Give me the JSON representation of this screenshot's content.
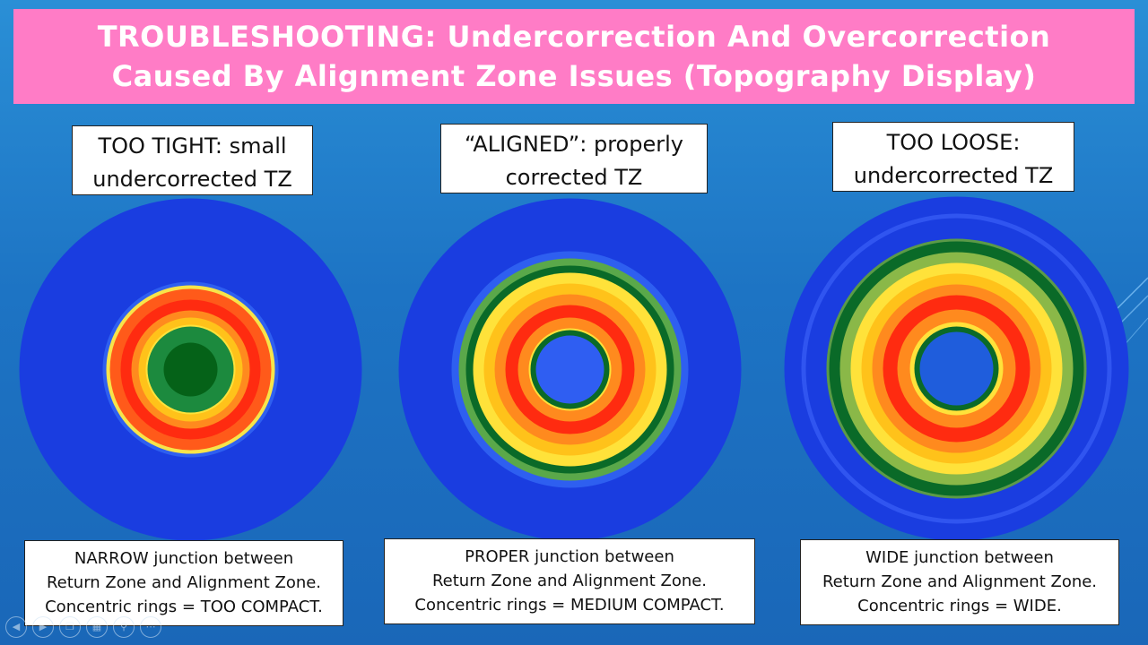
{
  "title": {
    "line1": "TROUBLESHOOTING: Undercorrection And Overcorrection",
    "line2": "Caused By Alignment Zone Issues (Topography Display)"
  },
  "panels": [
    {
      "heading": [
        "TOO TIGHT: small",
        "undercorrected TZ"
      ],
      "caption": [
        "NARROW junction between",
        "Return Zone and Alignment Zone.",
        "Concentric rings = TOO COMPACT."
      ],
      "rings": [
        "#1a3de0",
        "#2e5ff0",
        "#f7e44a",
        "#ff5a1a",
        "#ff2b10",
        "#ff8a1e",
        "#ffc21a",
        "#ffe23a",
        "#1c8a3e",
        "#056218"
      ]
    },
    {
      "heading": [
        "“ALIGNED”: properly",
        "corrected TZ"
      ],
      "caption": [
        "PROPER junction between",
        "Return Zone and Alignment Zone.",
        "Concentric rings = MEDIUM COMPACT."
      ],
      "rings": [
        "#1a3de0",
        "#2e5ff0",
        "#5aa84a",
        "#0a6a28",
        "#ffe23a",
        "#ffc21a",
        "#ff8a1e",
        "#ff2b10",
        "#ff8a1e",
        "#ffe23a",
        "#0a6a28",
        "#2f5ef2"
      ]
    },
    {
      "heading": [
        "TOO LOOSE:",
        "undercorrected TZ"
      ],
      "caption": [
        "WIDE junction between",
        "Return Zone and Alignment Zone.",
        "Concentric rings = WIDE."
      ],
      "rings": [
        "#1a3de0",
        "#3055f0",
        "#1a3de0",
        "#5b9a48",
        "#0a6a28",
        "#8ab848",
        "#ffe23a",
        "#ffc21a",
        "#ff8a1e",
        "#ff2b10",
        "#ff8a1e",
        "#ffe23a",
        "#0a6a28",
        "#1f5ddc"
      ]
    }
  ],
  "nav_icons": [
    "prev-icon",
    "next-icon",
    "copy-icon",
    "grid-icon",
    "zoom-icon",
    "more-icon"
  ]
}
